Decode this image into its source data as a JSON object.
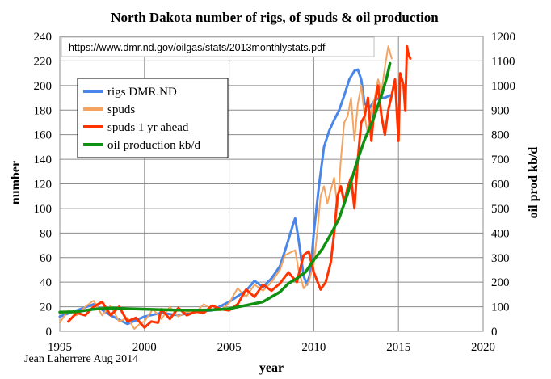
{
  "chart_data": {
    "type": "line",
    "title": "North Dakota number of rigs,  of spuds & oil production",
    "source_url": "https://www.dmr.nd.gov/oilgas/stats/2013monthlystats.pdf",
    "author": "Jean Laherrere Aug 2014",
    "xlabel": "year",
    "ylabel_left": "number",
    "ylabel_right": "oil prod kb/d",
    "xlim": [
      1995,
      2020
    ],
    "ylim_left": [
      0,
      240
    ],
    "ylim_right": [
      0,
      1200
    ],
    "x_ticks": [
      1995,
      2000,
      2005,
      2010,
      2015,
      2020
    ],
    "y_ticks_left": [
      0,
      20,
      40,
      60,
      80,
      100,
      120,
      140,
      160,
      180,
      200,
      220,
      240
    ],
    "y_ticks_right": [
      0,
      100,
      200,
      300,
      400,
      500,
      600,
      700,
      800,
      900,
      1000,
      1100,
      1200
    ],
    "grid": true,
    "legend_position": "upper-left",
    "series": [
      {
        "name": "rigs DMR.ND",
        "color": "#4a86e8",
        "axis": "left",
        "points": [
          [
            1995,
            12
          ],
          [
            1996,
            17
          ],
          [
            1997,
            22
          ],
          [
            1998,
            13
          ],
          [
            1999,
            6
          ],
          [
            2000,
            12
          ],
          [
            2001,
            15
          ],
          [
            2002,
            13
          ],
          [
            2003,
            16
          ],
          [
            2004,
            17
          ],
          [
            2005,
            24
          ],
          [
            2006,
            33
          ],
          [
            2006.5,
            41
          ],
          [
            2007,
            36
          ],
          [
            2007.5,
            43
          ],
          [
            2008,
            53
          ],
          [
            2008.4,
            70
          ],
          [
            2008.8,
            88
          ],
          [
            2008.9,
            92
          ],
          [
            2009.1,
            75
          ],
          [
            2009.4,
            45
          ],
          [
            2009.6,
            38
          ],
          [
            2009.8,
            48
          ],
          [
            2010,
            80
          ],
          [
            2010.3,
            118
          ],
          [
            2010.6,
            150
          ],
          [
            2010.9,
            163
          ],
          [
            2011.2,
            172
          ],
          [
            2011.5,
            180
          ],
          [
            2011.8,
            192
          ],
          [
            2012.1,
            205
          ],
          [
            2012.4,
            212
          ],
          [
            2012.6,
            213
          ],
          [
            2012.8,
            205
          ],
          [
            2013,
            185
          ],
          [
            2013.3,
            182
          ],
          [
            2013.6,
            188
          ],
          [
            2013.9,
            190
          ],
          [
            2014.2,
            190
          ],
          [
            2014.5,
            192
          ]
        ]
      },
      {
        "name": "spuds",
        "color": "#f4a460",
        "axis": "left",
        "points": [
          [
            1995,
            7
          ],
          [
            1995.5,
            17
          ],
          [
            1996,
            13
          ],
          [
            1996.5,
            20
          ],
          [
            1997,
            25
          ],
          [
            1997.5,
            13
          ],
          [
            1998,
            21
          ],
          [
            1998.5,
            8
          ],
          [
            1999,
            11
          ],
          [
            1999.4,
            2
          ],
          [
            1999.8,
            7
          ],
          [
            2000,
            8
          ],
          [
            2000.5,
            18
          ],
          [
            2001,
            10
          ],
          [
            2001.5,
            20
          ],
          [
            2002,
            12
          ],
          [
            2002.5,
            16
          ],
          [
            2003,
            15
          ],
          [
            2003.5,
            22
          ],
          [
            2004,
            18
          ],
          [
            2004.5,
            17
          ],
          [
            2005,
            23
          ],
          [
            2005.5,
            35
          ],
          [
            2006,
            28
          ],
          [
            2006.5,
            38
          ],
          [
            2007,
            33
          ],
          [
            2007.5,
            40
          ],
          [
            2008,
            50
          ],
          [
            2008.3,
            62
          ],
          [
            2008.6,
            64
          ],
          [
            2008.9,
            66
          ],
          [
            2009.1,
            50
          ],
          [
            2009.4,
            35
          ],
          [
            2009.7,
            40
          ],
          [
            2010,
            55
          ],
          [
            2010.2,
            80
          ],
          [
            2010.4,
            110
          ],
          [
            2010.6,
            118
          ],
          [
            2010.8,
            104
          ],
          [
            2011,
            115
          ],
          [
            2011.2,
            125
          ],
          [
            2011.4,
            100
          ],
          [
            2011.6,
            140
          ],
          [
            2011.8,
            170
          ],
          [
            2012,
            175
          ],
          [
            2012.2,
            190
          ],
          [
            2012.4,
            155
          ],
          [
            2012.6,
            185
          ],
          [
            2012.8,
            200
          ],
          [
            2013,
            175
          ],
          [
            2013.2,
            160
          ],
          [
            2013.4,
            180
          ],
          [
            2013.6,
            190
          ],
          [
            2013.8,
            205
          ],
          [
            2014,
            195
          ],
          [
            2014.2,
            215
          ],
          [
            2014.4,
            232
          ],
          [
            2014.6,
            222
          ]
        ]
      },
      {
        "name": "spuds 1 yr ahead",
        "color": "#ff3300",
        "axis": "left",
        "points": [
          [
            1995.5,
            8
          ],
          [
            1996,
            15
          ],
          [
            1996.5,
            13
          ],
          [
            1997,
            20
          ],
          [
            1997.5,
            24
          ],
          [
            1998,
            13
          ],
          [
            1998.5,
            20
          ],
          [
            1999,
            8
          ],
          [
            1999.5,
            11
          ],
          [
            2000,
            3
          ],
          [
            2000.4,
            8
          ],
          [
            2000.8,
            7
          ],
          [
            2001,
            18
          ],
          [
            2001.5,
            10
          ],
          [
            2002,
            19
          ],
          [
            2002.5,
            13
          ],
          [
            2003,
            16
          ],
          [
            2003.5,
            15
          ],
          [
            2004,
            21
          ],
          [
            2004.5,
            18
          ],
          [
            2005,
            17
          ],
          [
            2005.5,
            22
          ],
          [
            2006,
            34
          ],
          [
            2006.5,
            28
          ],
          [
            2007,
            38
          ],
          [
            2007.5,
            33
          ],
          [
            2008,
            39
          ],
          [
            2008.5,
            48
          ],
          [
            2009,
            40
          ],
          [
            2009.4,
            62
          ],
          [
            2009.7,
            65
          ],
          [
            2010,
            48
          ],
          [
            2010.4,
            34
          ],
          [
            2010.7,
            40
          ],
          [
            2011,
            56
          ],
          [
            2011.2,
            80
          ],
          [
            2011.4,
            110
          ],
          [
            2011.6,
            118
          ],
          [
            2011.8,
            105
          ],
          [
            2012,
            117
          ],
          [
            2012.2,
            125
          ],
          [
            2012.4,
            100
          ],
          [
            2012.6,
            140
          ],
          [
            2012.8,
            170
          ],
          [
            2013,
            175
          ],
          [
            2013.2,
            190
          ],
          [
            2013.4,
            155
          ],
          [
            2013.6,
            185
          ],
          [
            2013.8,
            200
          ],
          [
            2014,
            175
          ],
          [
            2014.2,
            160
          ],
          [
            2014.4,
            180
          ],
          [
            2014.6,
            192
          ],
          [
            2014.8,
            205
          ],
          [
            2015,
            155
          ],
          [
            2015.1,
            210
          ],
          [
            2015.3,
            200
          ],
          [
            2015.4,
            180
          ],
          [
            2015.5,
            232
          ],
          [
            2015.6,
            225
          ],
          [
            2015.7,
            222
          ]
        ]
      },
      {
        "name": "oil production kb/d",
        "color": "#109010",
        "axis": "right",
        "points": [
          [
            1995,
            78
          ],
          [
            1996,
            80
          ],
          [
            1997,
            90
          ],
          [
            1998,
            95
          ],
          [
            1999,
            92
          ],
          [
            2000,
            90
          ],
          [
            2001,
            88
          ],
          [
            2002,
            86
          ],
          [
            2003,
            86
          ],
          [
            2004,
            87
          ],
          [
            2005,
            92
          ],
          [
            2006,
            106
          ],
          [
            2007,
            120
          ],
          [
            2008,
            160
          ],
          [
            2008.5,
            195
          ],
          [
            2009,
            215
          ],
          [
            2009.5,
            240
          ],
          [
            2010,
            290
          ],
          [
            2010.5,
            335
          ],
          [
            2011,
            395
          ],
          [
            2011.5,
            460
          ],
          [
            2012,
            560
          ],
          [
            2012.5,
            680
          ],
          [
            2013,
            780
          ],
          [
            2013.5,
            860
          ],
          [
            2014,
            960
          ],
          [
            2014.3,
            1030
          ],
          [
            2014.5,
            1090
          ]
        ]
      }
    ]
  }
}
